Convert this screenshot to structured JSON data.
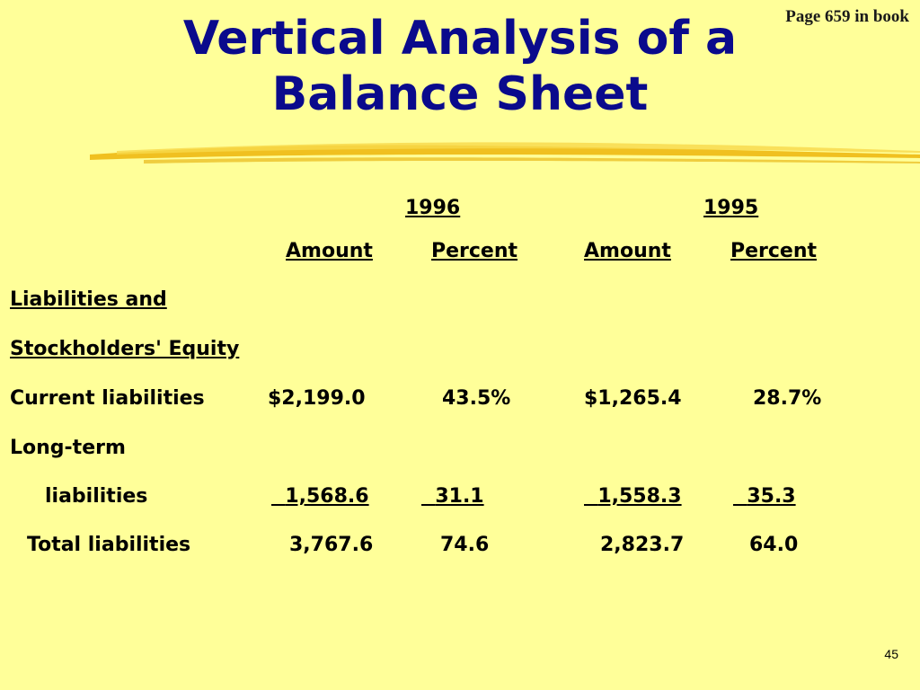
{
  "page_ref": "Page 659 in book",
  "title_line1": "Vertical Analysis of a",
  "title_line2": "Balance Sheet",
  "years": [
    "1996",
    "1995"
  ],
  "column_headers": [
    "Amount",
    "Percent",
    "Amount",
    "Percent"
  ],
  "section_header": [
    "Liabilities and",
    "Stockholders' Equity"
  ],
  "rows": [
    {
      "label": "Current liabilities",
      "a96": "$2,199.0",
      "p96": "43.5%",
      "a95": "$1,265.4",
      "p95": "28.7%"
    },
    {
      "label_line1": "Long-term",
      "label_line2": "liabilities",
      "a96": "1,568.6",
      "p96": "31.1",
      "a95": "1,558.3",
      "p95": "35.3"
    },
    {
      "label": "Total liabilities",
      "a96": "3,767.6",
      "p96": "74.6",
      "a95": "2,823.7",
      "p95": "64.0"
    }
  ],
  "slide_number": "45",
  "colors": {
    "background": "#ffff99",
    "title": "#0a0a8c",
    "brush": "#f0c020"
  }
}
